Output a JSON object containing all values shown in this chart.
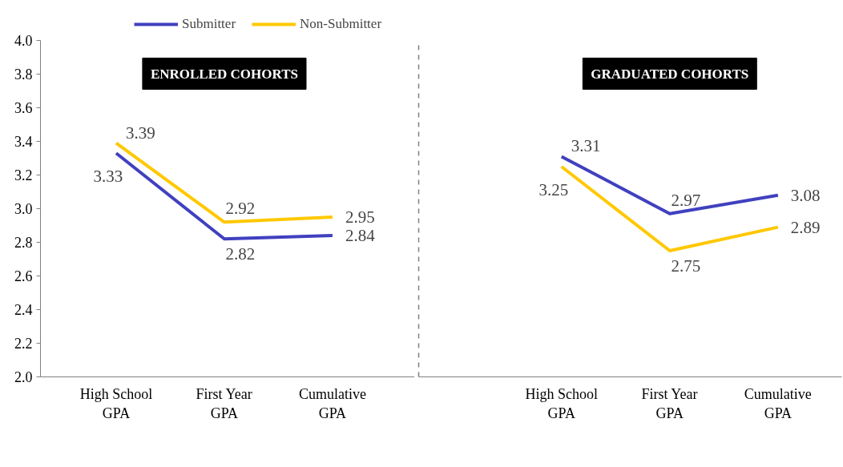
{
  "chart_data": [
    {
      "type": "line",
      "categories": [
        "High School GPA",
        "First Year GPA",
        "Cumulative GPA"
      ],
      "ylim": [
        2.0,
        4.0
      ],
      "yticks": [
        {
          "value": 2.0,
          "label": "2.0"
        },
        {
          "value": 2.2,
          "label": "2.2"
        },
        {
          "value": 2.4,
          "label": "2.4"
        },
        {
          "value": 2.6,
          "label": "2.6"
        },
        {
          "value": 2.8,
          "label": "2.8"
        },
        {
          "value": 3.0,
          "label": "3.0"
        },
        {
          "value": 3.2,
          "label": "3.2"
        },
        {
          "value": 3.4,
          "label": "3.4"
        },
        {
          "value": 3.6,
          "label": "3.6"
        },
        {
          "value": 3.8,
          "label": "3.8"
        },
        {
          "value": 4.0,
          "label": "4.0"
        }
      ],
      "series": [
        {
          "name": "Submitter",
          "color": "#4040c0",
          "values": [
            3.33,
            2.82,
            2.84
          ]
        },
        {
          "name": "Non-Submitter",
          "color": "#ffc800",
          "values": [
            3.39,
            2.92,
            2.95
          ]
        }
      ],
      "data_labels": true,
      "annotations": [
        "ENROLLED COHORTS"
      ],
      "legend": "top right"
    },
    {
      "type": "line",
      "categories": [
        "High School GPA",
        "First Year GPA",
        "Cumulative GPA"
      ],
      "ylim": [
        2.0,
        4.0
      ],
      "tick_labels": "x",
      "series": [
        {
          "color": "#4040c0",
          "values": [
            3.31,
            2.97,
            3.08
          ]
        },
        {
          "color": "#ffc800",
          "values": [
            3.25,
            2.75,
            2.89
          ]
        }
      ],
      "data_labels": true,
      "annotations": [
        "GRADUATED COHORTS"
      ]
    }
  ]
}
